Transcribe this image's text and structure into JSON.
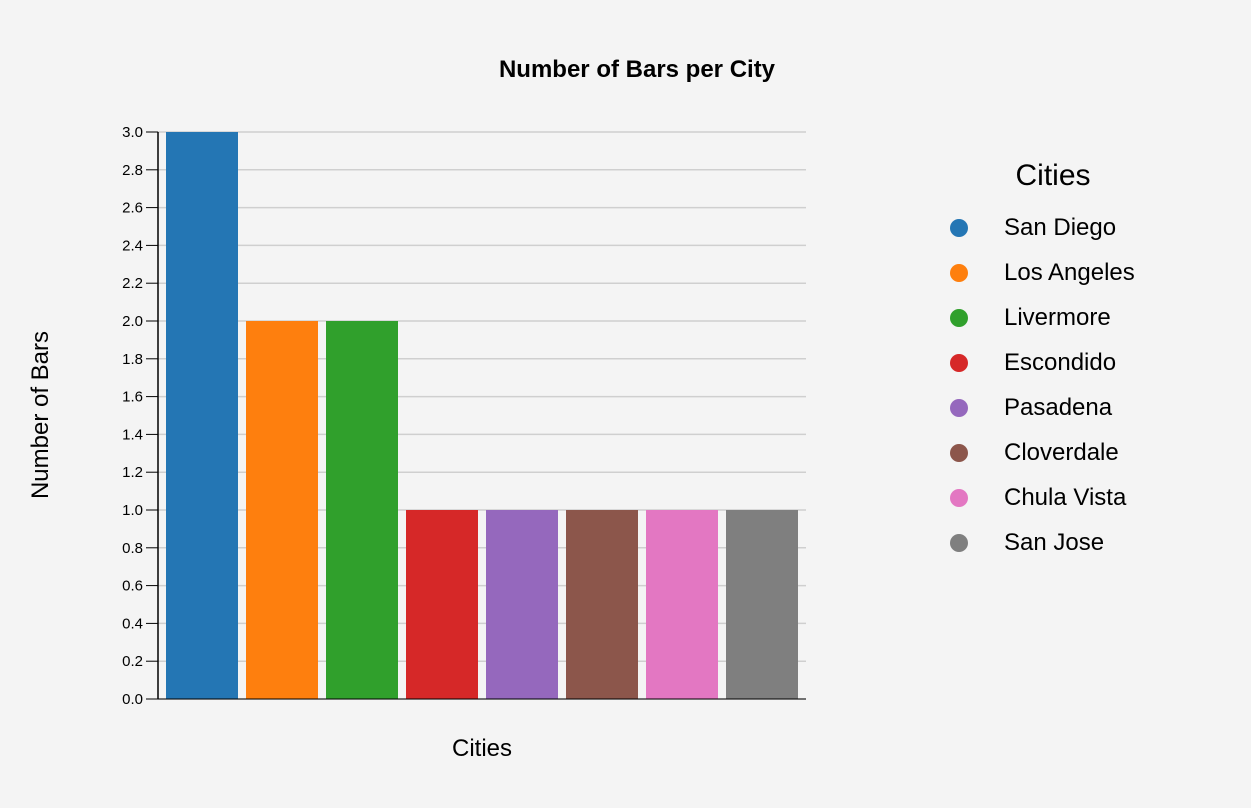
{
  "chart_data": {
    "type": "bar",
    "title": "Number of Bars per City",
    "xlabel": "Cities",
    "ylabel": "Number of Bars",
    "ylim": [
      0,
      3.0
    ],
    "yticks": [
      "0.0",
      "0.2",
      "0.4",
      "0.6",
      "0.8",
      "1.0",
      "1.2",
      "1.4",
      "1.6",
      "1.8",
      "2.0",
      "2.2",
      "2.4",
      "2.6",
      "2.8",
      "3.0"
    ],
    "grid": true,
    "categories": [
      "San Diego",
      "Los Angeles",
      "Livermore",
      "Escondido",
      "Pasadena",
      "Cloverdale",
      "Chula Vista",
      "San Jose"
    ],
    "values": [
      3,
      2,
      2,
      1,
      1,
      1,
      1,
      1
    ],
    "colors": [
      "#2476b4",
      "#fe7f0e",
      "#30a02c",
      "#d62828",
      "#9568bd",
      "#8c564b",
      "#e377c2",
      "#7f7f7f"
    ],
    "legend": {
      "title": "Cities",
      "position": "right",
      "entries": [
        "San Diego",
        "Los Angeles",
        "Livermore",
        "Escondido",
        "Pasadena",
        "Cloverdale",
        "Chula Vista",
        "San Jose"
      ]
    }
  }
}
